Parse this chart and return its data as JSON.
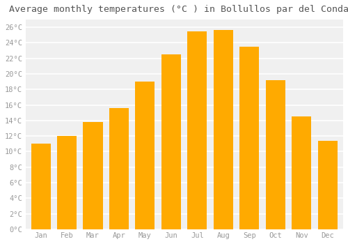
{
  "title": "Average monthly temperatures (°C ) in Bollullos par del Condado",
  "months": [
    "Jan",
    "Feb",
    "Mar",
    "Apr",
    "May",
    "Jun",
    "Jul",
    "Aug",
    "Sep",
    "Oct",
    "Nov",
    "Dec"
  ],
  "values": [
    11.0,
    12.0,
    13.8,
    15.6,
    19.0,
    22.5,
    25.5,
    25.7,
    23.5,
    19.2,
    14.5,
    11.4
  ],
  "bar_color": "#FFAA00",
  "bar_color_light": "#FFD060",
  "background_color": "#FFFFFF",
  "plot_bg_color": "#F0F0F0",
  "grid_color": "#FFFFFF",
  "text_color": "#999999",
  "title_color": "#555555",
  "ylim": [
    0,
    27
  ],
  "ytick_max": 26,
  "ytick_step": 2,
  "title_fontsize": 9.5,
  "tick_fontsize": 7.5
}
